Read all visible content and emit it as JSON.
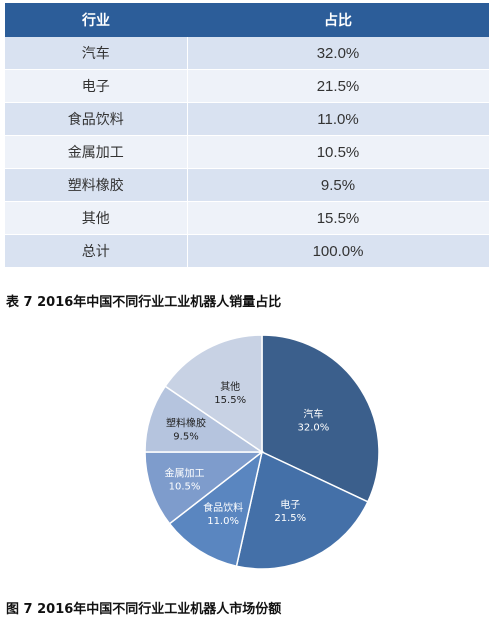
{
  "table": {
    "headers": [
      "行业",
      "占比"
    ],
    "rows": [
      [
        "汽车",
        "32.0%"
      ],
      [
        "电子",
        "21.5%"
      ],
      [
        "食品饮料",
        "11.0%"
      ],
      [
        "金属加工",
        "10.5%"
      ],
      [
        "塑料橡胶",
        "9.5%"
      ],
      [
        "其他",
        "15.5%"
      ],
      [
        "总计",
        "100.0%"
      ]
    ]
  },
  "table_caption": "表 7  2016年中国不同行业工业机器人销量占比",
  "figure_caption": "图 7 2016年中国不同行业工业机器人市场份额",
  "chart_data": {
    "type": "pie",
    "slices": [
      {
        "label": "汽车",
        "value": 32.0,
        "value_label": "32.0%",
        "color": "#3b5f8c",
        "text_color": "#ffffff"
      },
      {
        "label": "电子",
        "value": 21.5,
        "value_label": "21.5%",
        "color": "#4470a8",
        "text_color": "#ffffff"
      },
      {
        "label": "食品饮料",
        "value": 11.0,
        "value_label": "11.0%",
        "color": "#5a86c0",
        "text_color": "#ffffff"
      },
      {
        "label": "金属加工",
        "value": 10.5,
        "value_label": "10.5%",
        "color": "#7e9ccc",
        "text_color": "#ffffff"
      },
      {
        "label": "塑料橡胶",
        "value": 9.5,
        "value_label": "9.5%",
        "color": "#b5c4de",
        "text_color": "#222222"
      },
      {
        "label": "其他",
        "value": 15.5,
        "value_label": "15.5%",
        "color": "#c8d2e4",
        "text_color": "#222222"
      }
    ],
    "start": "12 o'clock",
    "direction": "clockwise",
    "legend": "none"
  }
}
